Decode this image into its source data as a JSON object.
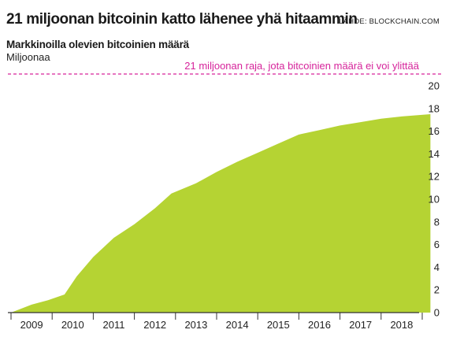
{
  "header": {
    "title": "21 miljoonan bitcoinin katto lähenee yhä hitaammin",
    "source": "LÄHDE: BLOCKCHAIN.COM",
    "subtitle": "Markkinoilla olevien bitcoinien määrä",
    "unit": "Miljoonaa"
  },
  "colors": {
    "area": "#b5d333",
    "limit_line": "#d6249b",
    "axis": "#333333"
  },
  "chart_data": {
    "type": "area",
    "title": "21 miljoonan bitcoinin katto lähenee yhä hitaammin",
    "subtitle": "Markkinoilla olevien bitcoinien määrä",
    "ylabel": "Miljoonaa",
    "xlabel": "",
    "xlim": [
      2009,
      2019.2
    ],
    "ylim": [
      0,
      20
    ],
    "y_ticks": [
      0,
      2,
      4,
      6,
      8,
      10,
      12,
      14,
      16,
      18,
      20
    ],
    "x_tick_labels": [
      "2009",
      "2010",
      "2011",
      "2012",
      "2013",
      "2014",
      "2015",
      "2016",
      "2017",
      "2018"
    ],
    "grid": false,
    "series": [
      {
        "x": [
          2009.0,
          2009.5,
          2009.9,
          2010.3,
          2010.6,
          2011.0,
          2011.5,
          2012.0,
          2012.5,
          2012.9,
          2013.5,
          2014.0,
          2014.5,
          2015.0,
          2015.5,
          2016.0,
          2016.5,
          2017.0,
          2017.5,
          2018.0,
          2018.5,
          2019.2
        ],
        "y": [
          0.0,
          0.7,
          1.1,
          1.6,
          3.2,
          4.9,
          6.6,
          7.8,
          9.2,
          10.5,
          11.4,
          12.4,
          13.3,
          14.1,
          14.9,
          15.7,
          16.1,
          16.5,
          16.8,
          17.1,
          17.3,
          17.5
        ]
      }
    ],
    "annotations": [
      {
        "type": "hline",
        "y": 21,
        "label": "21 miljoonan raja, jota bitcoinien määrä ei voi ylittää"
      }
    ]
  }
}
